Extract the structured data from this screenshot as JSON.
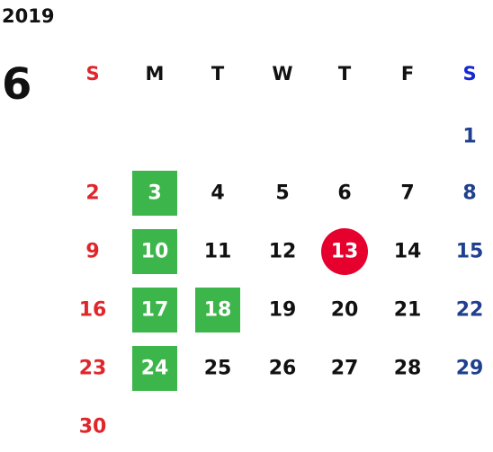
{
  "year": "2019",
  "month": "6",
  "weekdays": [
    "S",
    "M",
    "T",
    "W",
    "T",
    "F",
    "S"
  ],
  "header_colors": [
    "#e0262b",
    "#111111",
    "#111111",
    "#111111",
    "#111111",
    "#111111",
    "#1428d2"
  ],
  "day_colors": [
    "#e0262b",
    "#111111",
    "#111111",
    "#111111",
    "#111111",
    "#111111",
    "#1f3f8f"
  ],
  "weeks": [
    [
      null,
      null,
      null,
      null,
      null,
      null,
      "1"
    ],
    [
      "2",
      {
        "label": "3",
        "fill": "#3cb54a",
        "shape": "square"
      },
      "4",
      "5",
      "6",
      "7",
      "8"
    ],
    [
      "9",
      {
        "label": "10",
        "fill": "#3cb54a",
        "shape": "square"
      },
      "11",
      "12",
      {
        "label": "13",
        "fill": "#e5002d",
        "shape": "circle"
      },
      "14",
      "15"
    ],
    [
      "16",
      {
        "label": "17",
        "fill": "#3cb54a",
        "shape": "square"
      },
      {
        "label": "18",
        "fill": "#3cb54a",
        "shape": "square"
      },
      "19",
      "20",
      "21",
      "22"
    ],
    [
      "23",
      {
        "label": "24",
        "fill": "#3cb54a",
        "shape": "square"
      },
      "25",
      "26",
      "27",
      "28",
      "29"
    ],
    [
      "30",
      null,
      null,
      null,
      null,
      null,
      null
    ]
  ]
}
